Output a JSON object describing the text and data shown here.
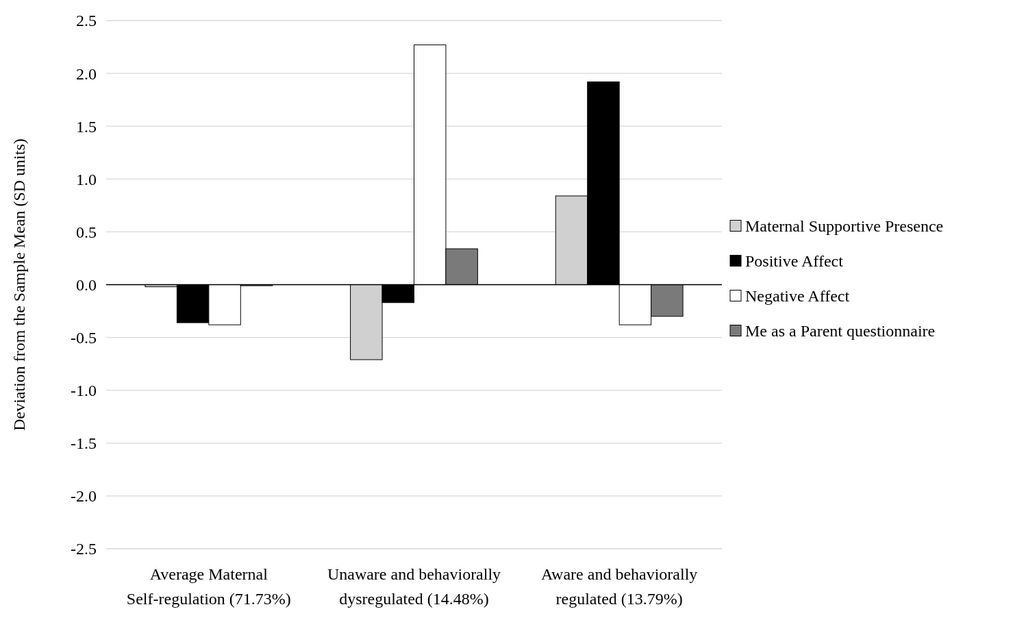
{
  "chart_data": {
    "type": "bar",
    "ylabel": "Deviation from the Sample Mean (SD units)",
    "categories": [
      "Average Maternal Self-regulation (71.73%)",
      "Unaware and behaviorally dysregulated (14.48%)",
      "Aware and behaviorally regulated (13.79%)"
    ],
    "series": [
      {
        "name": "Maternal Supportive Presence",
        "color": "#d0d0d0",
        "values": [
          -0.02,
          -0.71,
          0.84
        ]
      },
      {
        "name": "Positive Affect",
        "color": "#000000",
        "values": [
          -0.36,
          -0.17,
          1.92
        ]
      },
      {
        "name": "Negative Affect",
        "color": "#ffffff",
        "values": [
          -0.38,
          2.27,
          -0.38
        ]
      },
      {
        "name": "Me as a Parent questionnaire",
        "color": "#7a7a7a",
        "values": [
          -0.01,
          0.34,
          -0.3
        ]
      }
    ],
    "ylim": [
      -2.5,
      2.5
    ],
    "yticks": [
      {
        "value": -2.5,
        "label": "-2.5"
      },
      {
        "value": -2,
        "label": "-2.0"
      },
      {
        "value": -1.5,
        "label": "-1.5"
      },
      {
        "value": -1,
        "label": "-1.0"
      },
      {
        "value": -0.5,
        "label": "-0.5"
      },
      {
        "value": 0,
        "label": "0.0"
      },
      {
        "value": 0.5,
        "label": "0.5"
      },
      {
        "value": 1,
        "label": "1.0"
      },
      {
        "value": 1.5,
        "label": "1.5"
      },
      {
        "value": 2,
        "label": "2.0"
      },
      {
        "value": 2.5,
        "label": "2.5"
      }
    ],
    "grid": "y",
    "legend": "right"
  }
}
